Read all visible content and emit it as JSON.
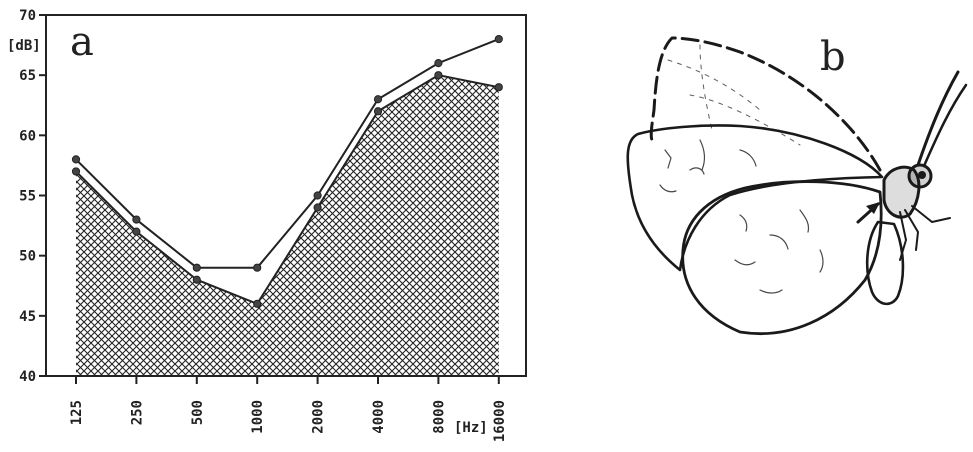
{
  "panel_a": {
    "label": "a"
  },
  "panel_b": {
    "label": "b"
  },
  "chart_data": {
    "type": "line",
    "categories": [
      "125",
      "250",
      "500",
      "1000",
      "2000",
      "4000",
      "8000",
      "16000"
    ],
    "series": [
      {
        "values": [
          58,
          53,
          49,
          49,
          55,
          63,
          66,
          68
        ]
      },
      {
        "values": [
          57,
          52,
          48,
          46,
          54,
          62,
          65,
          64
        ],
        "fill": "crosshatch"
      }
    ],
    "ylim": [
      40,
      70
    ],
    "yticks": [
      40,
      45,
      50,
      55,
      60,
      65,
      70
    ],
    "ylabel": "[dB]",
    "xlabel": "[Hz]",
    "xscale": "log",
    "grid": false,
    "colors": {
      "ink": "#222222",
      "marker": "#444444"
    }
  },
  "illustration": {
    "subject": "butterfly-line-drawing",
    "color": "#1a1a1a"
  }
}
